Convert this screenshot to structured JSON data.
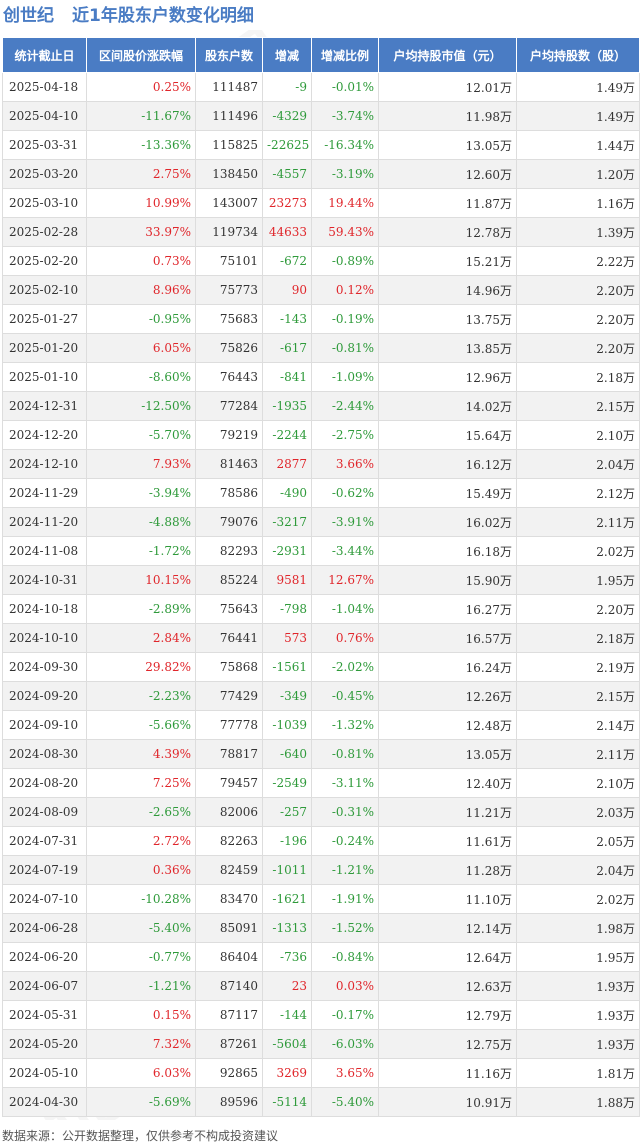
{
  "header": {
    "company": "创世纪",
    "title": "近1年股东户数变化明细"
  },
  "table": {
    "columns": [
      "统计截止日",
      "区间股价涨跌幅",
      "股东户数",
      "增减",
      "增减比例",
      "户均持股市值（元）",
      "户均持股数（股）"
    ],
    "rows": [
      [
        "2025-04-18",
        "0.25%",
        "111487",
        "-9",
        "-0.01%",
        "12.01万",
        "1.49万"
      ],
      [
        "2025-04-10",
        "-11.67%",
        "111496",
        "-4329",
        "-3.74%",
        "11.98万",
        "1.49万"
      ],
      [
        "2025-03-31",
        "-13.36%",
        "115825",
        "-22625",
        "-16.34%",
        "13.05万",
        "1.44万"
      ],
      [
        "2025-03-20",
        "2.75%",
        "138450",
        "-4557",
        "-3.19%",
        "12.60万",
        "1.20万"
      ],
      [
        "2025-03-10",
        "10.99%",
        "143007",
        "23273",
        "19.44%",
        "11.87万",
        "1.16万"
      ],
      [
        "2025-02-28",
        "33.97%",
        "119734",
        "44633",
        "59.43%",
        "12.78万",
        "1.39万"
      ],
      [
        "2025-02-20",
        "0.73%",
        "75101",
        "-672",
        "-0.89%",
        "15.21万",
        "2.22万"
      ],
      [
        "2025-02-10",
        "8.96%",
        "75773",
        "90",
        "0.12%",
        "14.96万",
        "2.20万"
      ],
      [
        "2025-01-27",
        "-0.95%",
        "75683",
        "-143",
        "-0.19%",
        "13.75万",
        "2.20万"
      ],
      [
        "2025-01-20",
        "6.05%",
        "75826",
        "-617",
        "-0.81%",
        "13.85万",
        "2.20万"
      ],
      [
        "2025-01-10",
        "-8.60%",
        "76443",
        "-841",
        "-1.09%",
        "12.96万",
        "2.18万"
      ],
      [
        "2024-12-31",
        "-12.50%",
        "77284",
        "-1935",
        "-2.44%",
        "14.02万",
        "2.15万"
      ],
      [
        "2024-12-20",
        "-5.70%",
        "79219",
        "-2244",
        "-2.75%",
        "15.64万",
        "2.10万"
      ],
      [
        "2024-12-10",
        "7.93%",
        "81463",
        "2877",
        "3.66%",
        "16.12万",
        "2.04万"
      ],
      [
        "2024-11-29",
        "-3.94%",
        "78586",
        "-490",
        "-0.62%",
        "15.49万",
        "2.12万"
      ],
      [
        "2024-11-20",
        "-4.88%",
        "79076",
        "-3217",
        "-3.91%",
        "16.02万",
        "2.11万"
      ],
      [
        "2024-11-08",
        "-1.72%",
        "82293",
        "-2931",
        "-3.44%",
        "16.18万",
        "2.02万"
      ],
      [
        "2024-10-31",
        "10.15%",
        "85224",
        "9581",
        "12.67%",
        "15.90万",
        "1.95万"
      ],
      [
        "2024-10-18",
        "-2.89%",
        "75643",
        "-798",
        "-1.04%",
        "16.27万",
        "2.20万"
      ],
      [
        "2024-10-10",
        "2.84%",
        "76441",
        "573",
        "0.76%",
        "16.57万",
        "2.18万"
      ],
      [
        "2024-09-30",
        "29.82%",
        "75868",
        "-1561",
        "-2.02%",
        "16.24万",
        "2.19万"
      ],
      [
        "2024-09-20",
        "-2.23%",
        "77429",
        "-349",
        "-0.45%",
        "12.26万",
        "2.15万"
      ],
      [
        "2024-09-10",
        "-5.66%",
        "77778",
        "-1039",
        "-1.32%",
        "12.48万",
        "2.14万"
      ],
      [
        "2024-08-30",
        "4.39%",
        "78817",
        "-640",
        "-0.81%",
        "13.05万",
        "2.11万"
      ],
      [
        "2024-08-20",
        "7.25%",
        "79457",
        "-2549",
        "-3.11%",
        "12.40万",
        "2.10万"
      ],
      [
        "2024-08-09",
        "-2.65%",
        "82006",
        "-257",
        "-0.31%",
        "11.21万",
        "2.03万"
      ],
      [
        "2024-07-31",
        "2.72%",
        "82263",
        "-196",
        "-0.24%",
        "11.61万",
        "2.05万"
      ],
      [
        "2024-07-19",
        "0.36%",
        "82459",
        "-1011",
        "-1.21%",
        "11.28万",
        "2.04万"
      ],
      [
        "2024-07-10",
        "-10.28%",
        "83470",
        "-1621",
        "-1.91%",
        "11.10万",
        "2.02万"
      ],
      [
        "2024-06-28",
        "-5.40%",
        "85091",
        "-1313",
        "-1.52%",
        "12.14万",
        "1.98万"
      ],
      [
        "2024-06-20",
        "-0.77%",
        "86404",
        "-736",
        "-0.84%",
        "12.64万",
        "1.95万"
      ],
      [
        "2024-06-07",
        "-1.21%",
        "87140",
        "23",
        "0.03%",
        "12.63万",
        "1.93万"
      ],
      [
        "2024-05-31",
        "0.15%",
        "87117",
        "-144",
        "-0.17%",
        "12.79万",
        "1.93万"
      ],
      [
        "2024-05-20",
        "7.32%",
        "87261",
        "-5604",
        "-6.03%",
        "12.75万",
        "1.93万"
      ],
      [
        "2024-05-10",
        "6.03%",
        "92865",
        "3269",
        "3.65%",
        "11.16万",
        "1.81万"
      ],
      [
        "2024-04-30",
        "-5.69%",
        "89596",
        "-5114",
        "-5.40%",
        "10.91万",
        "1.88万"
      ]
    ]
  },
  "footer": {
    "source": "数据来源：公开数据整理，仅供参考不构成投资建议"
  },
  "watermark": "证券之星",
  "colors": {
    "header_bg": "#4a7cc4",
    "title": "#4a7cc4",
    "up": "#e0262b",
    "down": "#2e9a3a",
    "stripe": "#f2f2f2"
  }
}
